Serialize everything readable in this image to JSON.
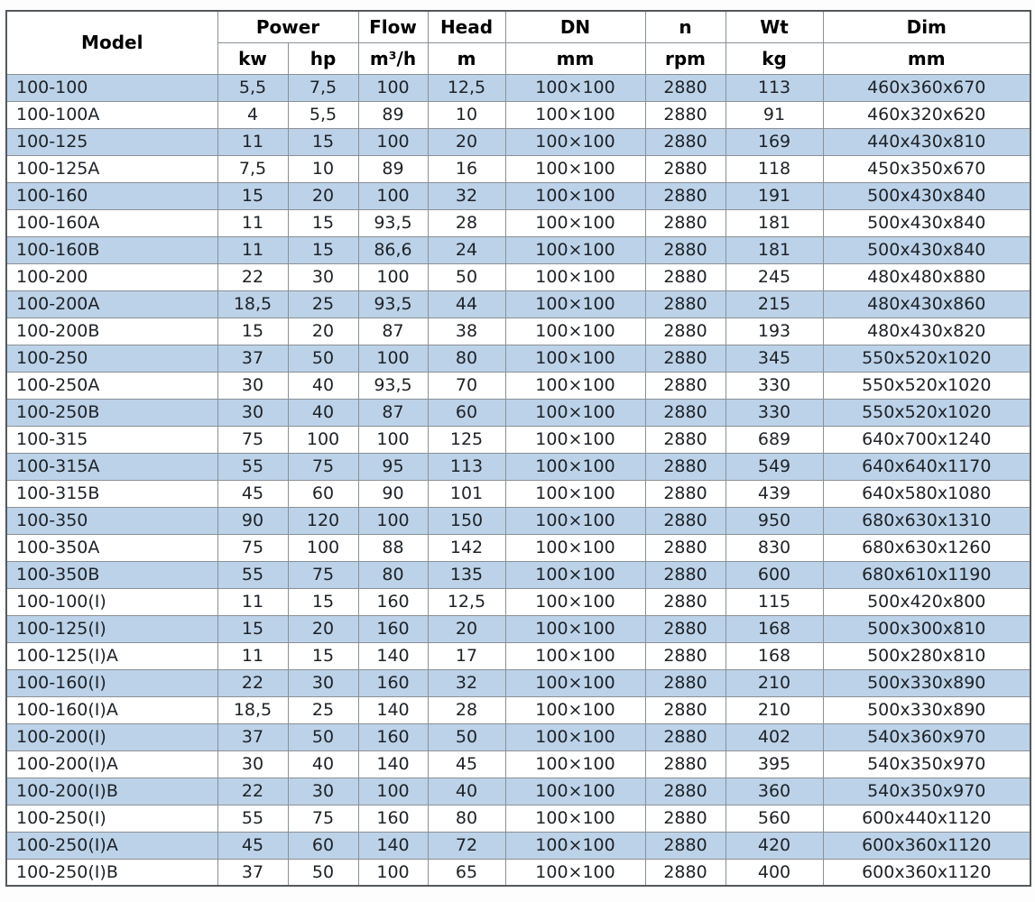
{
  "colors": {
    "row_alt": "#bcd2e8",
    "row_base": "#ffffff",
    "border_inner": "#8a9096",
    "border_outer": "#54585c",
    "text": "#1e2227"
  },
  "chart_data": {
    "type": "table",
    "header": {
      "top": [
        {
          "label": "Model"
        },
        {
          "label": "Power"
        },
        {
          "label": "Flow"
        },
        {
          "label": "Head"
        },
        {
          "label": "DN"
        },
        {
          "label": "n"
        },
        {
          "label": "Wt"
        },
        {
          "label": "Dim"
        }
      ],
      "units": [
        "kw",
        "hp",
        "m³/h",
        "m",
        "mm",
        "rpm",
        "kg",
        "mm"
      ]
    },
    "rows": [
      [
        "100-100",
        "5,5",
        "7,5",
        "100",
        "12,5",
        "100×100",
        "2880",
        "113",
        "460x360x670"
      ],
      [
        "100-100A",
        "4",
        "5,5",
        "89",
        "10",
        "100×100",
        "2880",
        "91",
        "460x320x620"
      ],
      [
        "100-125",
        "11",
        "15",
        "100",
        "20",
        "100×100",
        "2880",
        "169",
        "440x430x810"
      ],
      [
        "100-125A",
        "7,5",
        "10",
        "89",
        "16",
        "100×100",
        "2880",
        "118",
        "450x350x670"
      ],
      [
        "100-160",
        "15",
        "20",
        "100",
        "32",
        "100×100",
        "2880",
        "191",
        "500x430x840"
      ],
      [
        "100-160A",
        "11",
        "15",
        "93,5",
        "28",
        "100×100",
        "2880",
        "181",
        "500x430x840"
      ],
      [
        "100-160B",
        "11",
        "15",
        "86,6",
        "24",
        "100×100",
        "2880",
        "181",
        "500x430x840"
      ],
      [
        "100-200",
        "22",
        "30",
        "100",
        "50",
        "100×100",
        "2880",
        "245",
        "480x480x880"
      ],
      [
        "100-200A",
        "18,5",
        "25",
        "93,5",
        "44",
        "100×100",
        "2880",
        "215",
        "480x430x860"
      ],
      [
        "100-200B",
        "15",
        "20",
        "87",
        "38",
        "100×100",
        "2880",
        "193",
        "480x430x820"
      ],
      [
        "100-250",
        "37",
        "50",
        "100",
        "80",
        "100×100",
        "2880",
        "345",
        "550x520x1020"
      ],
      [
        "100-250A",
        "30",
        "40",
        "93,5",
        "70",
        "100×100",
        "2880",
        "330",
        "550x520x1020"
      ],
      [
        "100-250B",
        "30",
        "40",
        "87",
        "60",
        "100×100",
        "2880",
        "330",
        "550x520x1020"
      ],
      [
        "100-315",
        "75",
        "100",
        "100",
        "125",
        "100×100",
        "2880",
        "689",
        "640x700x1240"
      ],
      [
        "100-315A",
        "55",
        "75",
        "95",
        "113",
        "100×100",
        "2880",
        "549",
        "640x640x1170"
      ],
      [
        "100-315B",
        "45",
        "60",
        "90",
        "101",
        "100×100",
        "2880",
        "439",
        "640x580x1080"
      ],
      [
        "100-350",
        "90",
        "120",
        "100",
        "150",
        "100×100",
        "2880",
        "950",
        "680x630x1310"
      ],
      [
        "100-350A",
        "75",
        "100",
        "88",
        "142",
        "100×100",
        "2880",
        "830",
        "680x630x1260"
      ],
      [
        "100-350B",
        "55",
        "75",
        "80",
        "135",
        "100×100",
        "2880",
        "600",
        "680x610x1190"
      ],
      [
        "100-100(I)",
        "11",
        "15",
        "160",
        "12,5",
        "100×100",
        "2880",
        "115",
        "500x420x800"
      ],
      [
        "100-125(I)",
        "15",
        "20",
        "160",
        "20",
        "100×100",
        "2880",
        "168",
        "500x300x810"
      ],
      [
        "100-125(I)A",
        "11",
        "15",
        "140",
        "17",
        "100×100",
        "2880",
        "168",
        "500x280x810"
      ],
      [
        "100-160(I)",
        "22",
        "30",
        "160",
        "32",
        "100×100",
        "2880",
        "210",
        "500x330x890"
      ],
      [
        "100-160(I)A",
        "18,5",
        "25",
        "140",
        "28",
        "100×100",
        "2880",
        "210",
        "500x330x890"
      ],
      [
        "100-200(I)",
        "37",
        "50",
        "160",
        "50",
        "100×100",
        "2880",
        "402",
        "540x360x970"
      ],
      [
        "100-200(I)A",
        "30",
        "40",
        "140",
        "45",
        "100×100",
        "2880",
        "395",
        "540x350x970"
      ],
      [
        "100-200(I)B",
        "22",
        "30",
        "100",
        "40",
        "100×100",
        "2880",
        "360",
        "540x350x970"
      ],
      [
        "100-250(I)",
        "55",
        "75",
        "160",
        "80",
        "100×100",
        "2880",
        "560",
        "600x440x1120"
      ],
      [
        "100-250(I)A",
        "45",
        "60",
        "140",
        "72",
        "100×100",
        "2880",
        "420",
        "600x360x1120"
      ],
      [
        "100-250(I)B",
        "37",
        "50",
        "100",
        "65",
        "100×100",
        "2880",
        "400",
        "600x360x1120"
      ]
    ]
  }
}
